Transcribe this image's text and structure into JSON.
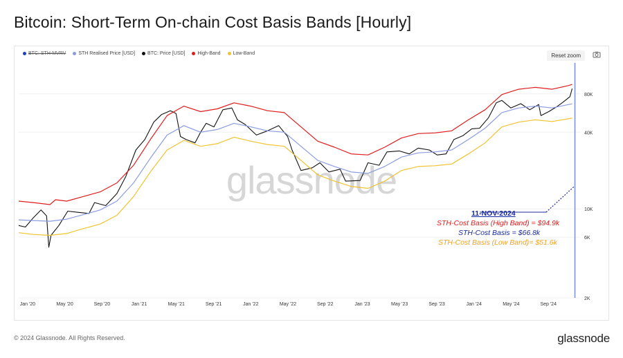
{
  "title": "Bitcoin: Short-Term On-chain Cost Basis Bands [Hourly]",
  "legend": [
    {
      "label": "BTC: STH-MVRV",
      "color": "#1f3fbf",
      "disabled": true
    },
    {
      "label": "STH Realised Price [USD]",
      "color": "#8a9ce0",
      "disabled": false
    },
    {
      "label": "BTC: Price [USD]",
      "color": "#111111",
      "disabled": false
    },
    {
      "label": "High-Band",
      "color": "#e01c1c",
      "disabled": false
    },
    {
      "label": "Low-Band",
      "color": "#f0c330",
      "disabled": false
    }
  ],
  "toolbar": {
    "reset_zoom": "Reset zoom",
    "camera_icon": "camera-icon"
  },
  "watermark": "glassnode",
  "annotation": {
    "date": "11-NOV-2024",
    "high": "STH-Cost Basis (High Band) = $94.9k",
    "mid": "STH-Cost Basis = $66.8k",
    "low": "STH-Cost Basis  (Low Band)= $51.6k",
    "colors": {
      "date": "#1a2a9c",
      "high": "#e01c1c",
      "mid": "#1a2a9c",
      "low": "#f0a020"
    }
  },
  "footer": {
    "copyright": "© 2024 Glassnode. All Rights Reserved.",
    "logo": "glassnode"
  },
  "chart_data": {
    "type": "line",
    "y_scale": "log",
    "ylim": [
      2000,
      140000
    ],
    "y_ticks": [
      {
        "value": 2000,
        "label": "2K"
      },
      {
        "value": 6000,
        "label": "6K"
      },
      {
        "value": 10000,
        "label": "10K"
      },
      {
        "value": 40000,
        "label": "40K"
      },
      {
        "value": 80000,
        "label": "80K"
      }
    ],
    "xlim": [
      2019.92,
      2024.92
    ],
    "x_ticks": [
      {
        "value": 2020.0,
        "label": "Jan '20"
      },
      {
        "value": 2020.333,
        "label": "May '20"
      },
      {
        "value": 2020.667,
        "label": "Sep '20"
      },
      {
        "value": 2021.0,
        "label": "Jan '21"
      },
      {
        "value": 2021.333,
        "label": "May '21"
      },
      {
        "value": 2021.667,
        "label": "Sep '21"
      },
      {
        "value": 2022.0,
        "label": "Jan '22"
      },
      {
        "value": 2022.333,
        "label": "May '22"
      },
      {
        "value": 2022.667,
        "label": "Sep '22"
      },
      {
        "value": 2023.0,
        "label": "Jan '23"
      },
      {
        "value": 2023.333,
        "label": "May '23"
      },
      {
        "value": 2023.667,
        "label": "Sep '23"
      },
      {
        "value": 2024.0,
        "label": "Jan '24"
      },
      {
        "value": 2024.333,
        "label": "May '24"
      },
      {
        "value": 2024.667,
        "label": "Sep '24"
      }
    ],
    "series": [
      {
        "name": "BTC: Price [USD]",
        "color": "#111111",
        "points": [
          [
            2019.92,
            7400
          ],
          [
            2019.98,
            7200
          ],
          [
            2020.05,
            8500
          ],
          [
            2020.12,
            9800
          ],
          [
            2020.17,
            8800
          ],
          [
            2020.19,
            5000
          ],
          [
            2020.21,
            6200
          ],
          [
            2020.28,
            7400
          ],
          [
            2020.36,
            9600
          ],
          [
            2020.45,
            9400
          ],
          [
            2020.55,
            9200
          ],
          [
            2020.6,
            11200
          ],
          [
            2020.7,
            10600
          ],
          [
            2020.8,
            13200
          ],
          [
            2020.88,
            18000
          ],
          [
            2020.97,
            29000
          ],
          [
            2021.05,
            35000
          ],
          [
            2021.13,
            48000
          ],
          [
            2021.2,
            55000
          ],
          [
            2021.28,
            59000
          ],
          [
            2021.33,
            56000
          ],
          [
            2021.37,
            37000
          ],
          [
            2021.42,
            35000
          ],
          [
            2021.5,
            33000
          ],
          [
            2021.55,
            40000
          ],
          [
            2021.6,
            47000
          ],
          [
            2021.67,
            44000
          ],
          [
            2021.75,
            60000
          ],
          [
            2021.83,
            62000
          ],
          [
            2021.88,
            50000
          ],
          [
            2021.95,
            46000
          ],
          [
            2022.05,
            38000
          ],
          [
            2022.15,
            41000
          ],
          [
            2022.25,
            45000
          ],
          [
            2022.33,
            37000
          ],
          [
            2022.37,
            29000
          ],
          [
            2022.45,
            20000
          ],
          [
            2022.55,
            21000
          ],
          [
            2022.62,
            23000
          ],
          [
            2022.7,
            19500
          ],
          [
            2022.8,
            20500
          ],
          [
            2022.85,
            16500
          ],
          [
            2022.98,
            16700
          ],
          [
            2023.05,
            23000
          ],
          [
            2023.15,
            22000
          ],
          [
            2023.22,
            28000
          ],
          [
            2023.33,
            28500
          ],
          [
            2023.42,
            27000
          ],
          [
            2023.5,
            30000
          ],
          [
            2023.6,
            29000
          ],
          [
            2023.67,
            26500
          ],
          [
            2023.75,
            27000
          ],
          [
            2023.82,
            35000
          ],
          [
            2023.9,
            37500
          ],
          [
            2023.98,
            42500
          ],
          [
            2024.05,
            43000
          ],
          [
            2024.13,
            52000
          ],
          [
            2024.2,
            68000
          ],
          [
            2024.25,
            71000
          ],
          [
            2024.33,
            62000
          ],
          [
            2024.42,
            67000
          ],
          [
            2024.5,
            60000
          ],
          [
            2024.58,
            66000
          ],
          [
            2024.6,
            54000
          ],
          [
            2024.67,
            58000
          ],
          [
            2024.75,
            64000
          ],
          [
            2024.8,
            69000
          ],
          [
            2024.86,
            76000
          ],
          [
            2024.88,
            88000
          ]
        ]
      },
      {
        "name": "STH Realised Price [USD]",
        "color": "#8a9ce0",
        "points": [
          [
            2019.92,
            8200
          ],
          [
            2020.05,
            8100
          ],
          [
            2020.2,
            8000
          ],
          [
            2020.35,
            8300
          ],
          [
            2020.5,
            9000
          ],
          [
            2020.65,
            9800
          ],
          [
            2020.8,
            11500
          ],
          [
            2020.95,
            16000
          ],
          [
            2021.1,
            25000
          ],
          [
            2021.25,
            38000
          ],
          [
            2021.4,
            45000
          ],
          [
            2021.55,
            40000
          ],
          [
            2021.7,
            42000
          ],
          [
            2021.85,
            47000
          ],
          [
            2022.0,
            44000
          ],
          [
            2022.15,
            41000
          ],
          [
            2022.3,
            40000
          ],
          [
            2022.45,
            31000
          ],
          [
            2022.6,
            24000
          ],
          [
            2022.75,
            21500
          ],
          [
            2022.9,
            19500
          ],
          [
            2023.05,
            19000
          ],
          [
            2023.2,
            21500
          ],
          [
            2023.35,
            25500
          ],
          [
            2023.5,
            27500
          ],
          [
            2023.65,
            28000
          ],
          [
            2023.8,
            29000
          ],
          [
            2023.95,
            35000
          ],
          [
            2024.1,
            43000
          ],
          [
            2024.25,
            57000
          ],
          [
            2024.4,
            62000
          ],
          [
            2024.55,
            64000
          ],
          [
            2024.7,
            62000
          ],
          [
            2024.88,
            66800
          ]
        ]
      },
      {
        "name": "High-Band",
        "color": "#e01c1c",
        "points": [
          [
            2019.92,
            11500
          ],
          [
            2020.05,
            11200
          ],
          [
            2020.2,
            10800
          ],
          [
            2020.25,
            11800
          ],
          [
            2020.35,
            11500
          ],
          [
            2020.5,
            12500
          ],
          [
            2020.65,
            13600
          ],
          [
            2020.8,
            16000
          ],
          [
            2020.95,
            22000
          ],
          [
            2021.1,
            35000
          ],
          [
            2021.25,
            54000
          ],
          [
            2021.4,
            64000
          ],
          [
            2021.55,
            58000
          ],
          [
            2021.7,
            61000
          ],
          [
            2021.85,
            68000
          ],
          [
            2022.0,
            64000
          ],
          [
            2022.15,
            59000
          ],
          [
            2022.3,
            57000
          ],
          [
            2022.45,
            44000
          ],
          [
            2022.6,
            34000
          ],
          [
            2022.75,
            30500
          ],
          [
            2022.9,
            27000
          ],
          [
            2023.05,
            26500
          ],
          [
            2023.2,
            30500
          ],
          [
            2023.35,
            36000
          ],
          [
            2023.5,
            39000
          ],
          [
            2023.65,
            39500
          ],
          [
            2023.8,
            41000
          ],
          [
            2023.95,
            50000
          ],
          [
            2024.1,
            60000
          ],
          [
            2024.25,
            79000
          ],
          [
            2024.4,
            87000
          ],
          [
            2024.55,
            90000
          ],
          [
            2024.7,
            87000
          ],
          [
            2024.85,
            93000
          ],
          [
            2024.88,
            94900
          ]
        ]
      },
      {
        "name": "Low-Band",
        "color": "#f0c330",
        "points": [
          [
            2019.92,
            6500
          ],
          [
            2020.05,
            6300
          ],
          [
            2020.2,
            6200
          ],
          [
            2020.35,
            6400
          ],
          [
            2020.5,
            7000
          ],
          [
            2020.65,
            7600
          ],
          [
            2020.8,
            8900
          ],
          [
            2020.95,
            12500
          ],
          [
            2021.1,
            19500
          ],
          [
            2021.25,
            29000
          ],
          [
            2021.4,
            34500
          ],
          [
            2021.55,
            31000
          ],
          [
            2021.7,
            32500
          ],
          [
            2021.85,
            36500
          ],
          [
            2022.0,
            34000
          ],
          [
            2022.15,
            32000
          ],
          [
            2022.3,
            31000
          ],
          [
            2022.45,
            24000
          ],
          [
            2022.6,
            18500
          ],
          [
            2022.75,
            16500
          ],
          [
            2022.9,
            15000
          ],
          [
            2023.05,
            14500
          ],
          [
            2023.2,
            16500
          ],
          [
            2023.35,
            20000
          ],
          [
            2023.5,
            21500
          ],
          [
            2023.65,
            21800
          ],
          [
            2023.8,
            22500
          ],
          [
            2023.95,
            27000
          ],
          [
            2024.1,
            33000
          ],
          [
            2024.25,
            44000
          ],
          [
            2024.4,
            48000
          ],
          [
            2024.55,
            50000
          ],
          [
            2024.7,
            48500
          ],
          [
            2024.88,
            51600
          ]
        ]
      }
    ]
  }
}
